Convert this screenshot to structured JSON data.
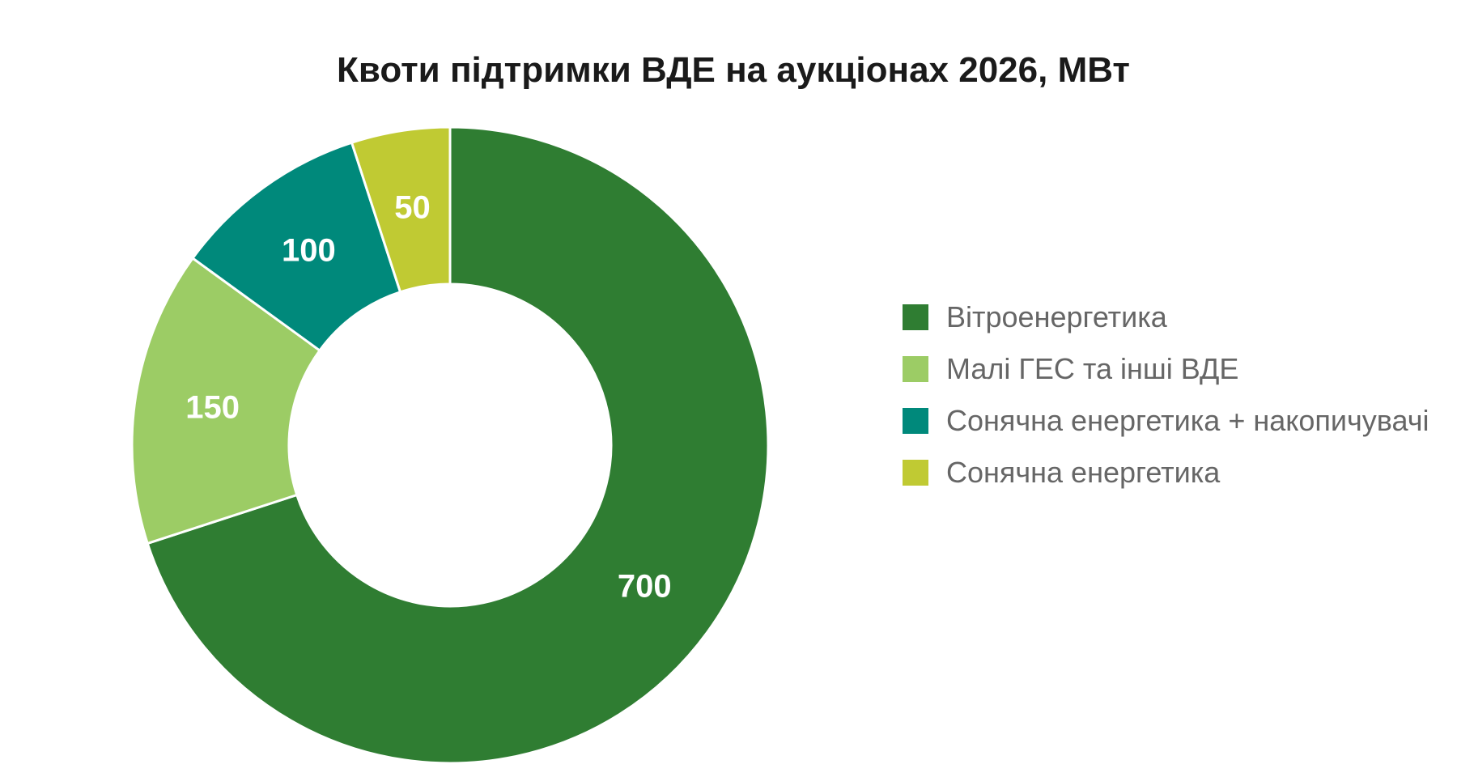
{
  "chart_data": {
    "type": "pie",
    "subtype": "donut",
    "title": "Квоти підтримки ВДЕ на аукціонах 2026, МВт",
    "categories": [
      "Вітроенергетика",
      "Малі ГЕС та інші ВДЕ",
      "Сонячна енергетика + накопичувачі",
      "Сонячна енергетика"
    ],
    "values": [
      700,
      150,
      100,
      50
    ],
    "data_labels": [
      "700",
      "150",
      "100",
      "50"
    ],
    "colors": [
      "#2f7d32",
      "#9ccc65",
      "#00897b",
      "#c0ca33"
    ],
    "legend_position": "right",
    "direction": "clockwise from top"
  }
}
